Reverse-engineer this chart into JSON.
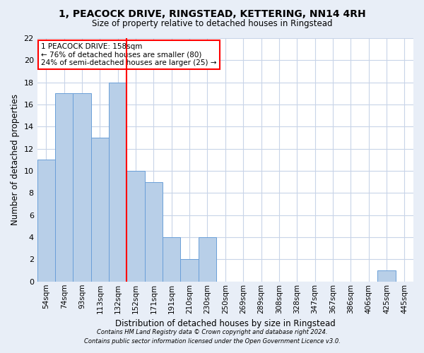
{
  "title1": "1, PEACOCK DRIVE, RINGSTEAD, KETTERING, NN14 4RH",
  "title2": "Size of property relative to detached houses in Ringstead",
  "xlabel": "Distribution of detached houses by size in Ringstead",
  "ylabel": "Number of detached properties",
  "categories": [
    "54sqm",
    "74sqm",
    "93sqm",
    "113sqm",
    "132sqm",
    "152sqm",
    "171sqm",
    "191sqm",
    "210sqm",
    "230sqm",
    "250sqm",
    "269sqm",
    "289sqm",
    "308sqm",
    "328sqm",
    "347sqm",
    "367sqm",
    "386sqm",
    "406sqm",
    "425sqm",
    "445sqm"
  ],
  "values": [
    11,
    17,
    17,
    13,
    18,
    10,
    9,
    4,
    2,
    4,
    0,
    0,
    0,
    0,
    0,
    0,
    0,
    0,
    0,
    1,
    0
  ],
  "bar_color": "#b8cfe8",
  "bar_edge_color": "#6a9fd8",
  "red_line_x": 4.5,
  "ylim": [
    0,
    22
  ],
  "yticks": [
    0,
    2,
    4,
    6,
    8,
    10,
    12,
    14,
    16,
    18,
    20,
    22
  ],
  "annotation_text": "1 PEACOCK DRIVE: 158sqm\n← 76% of detached houses are smaller (80)\n24% of semi-detached houses are larger (25) →",
  "footer1": "Contains HM Land Registry data © Crown copyright and database right 2024.",
  "footer2": "Contains public sector information licensed under the Open Government Licence v3.0.",
  "background_color": "#e8eef7",
  "plot_bg_color": "#ffffff",
  "grid_color": "#c8d4e8"
}
